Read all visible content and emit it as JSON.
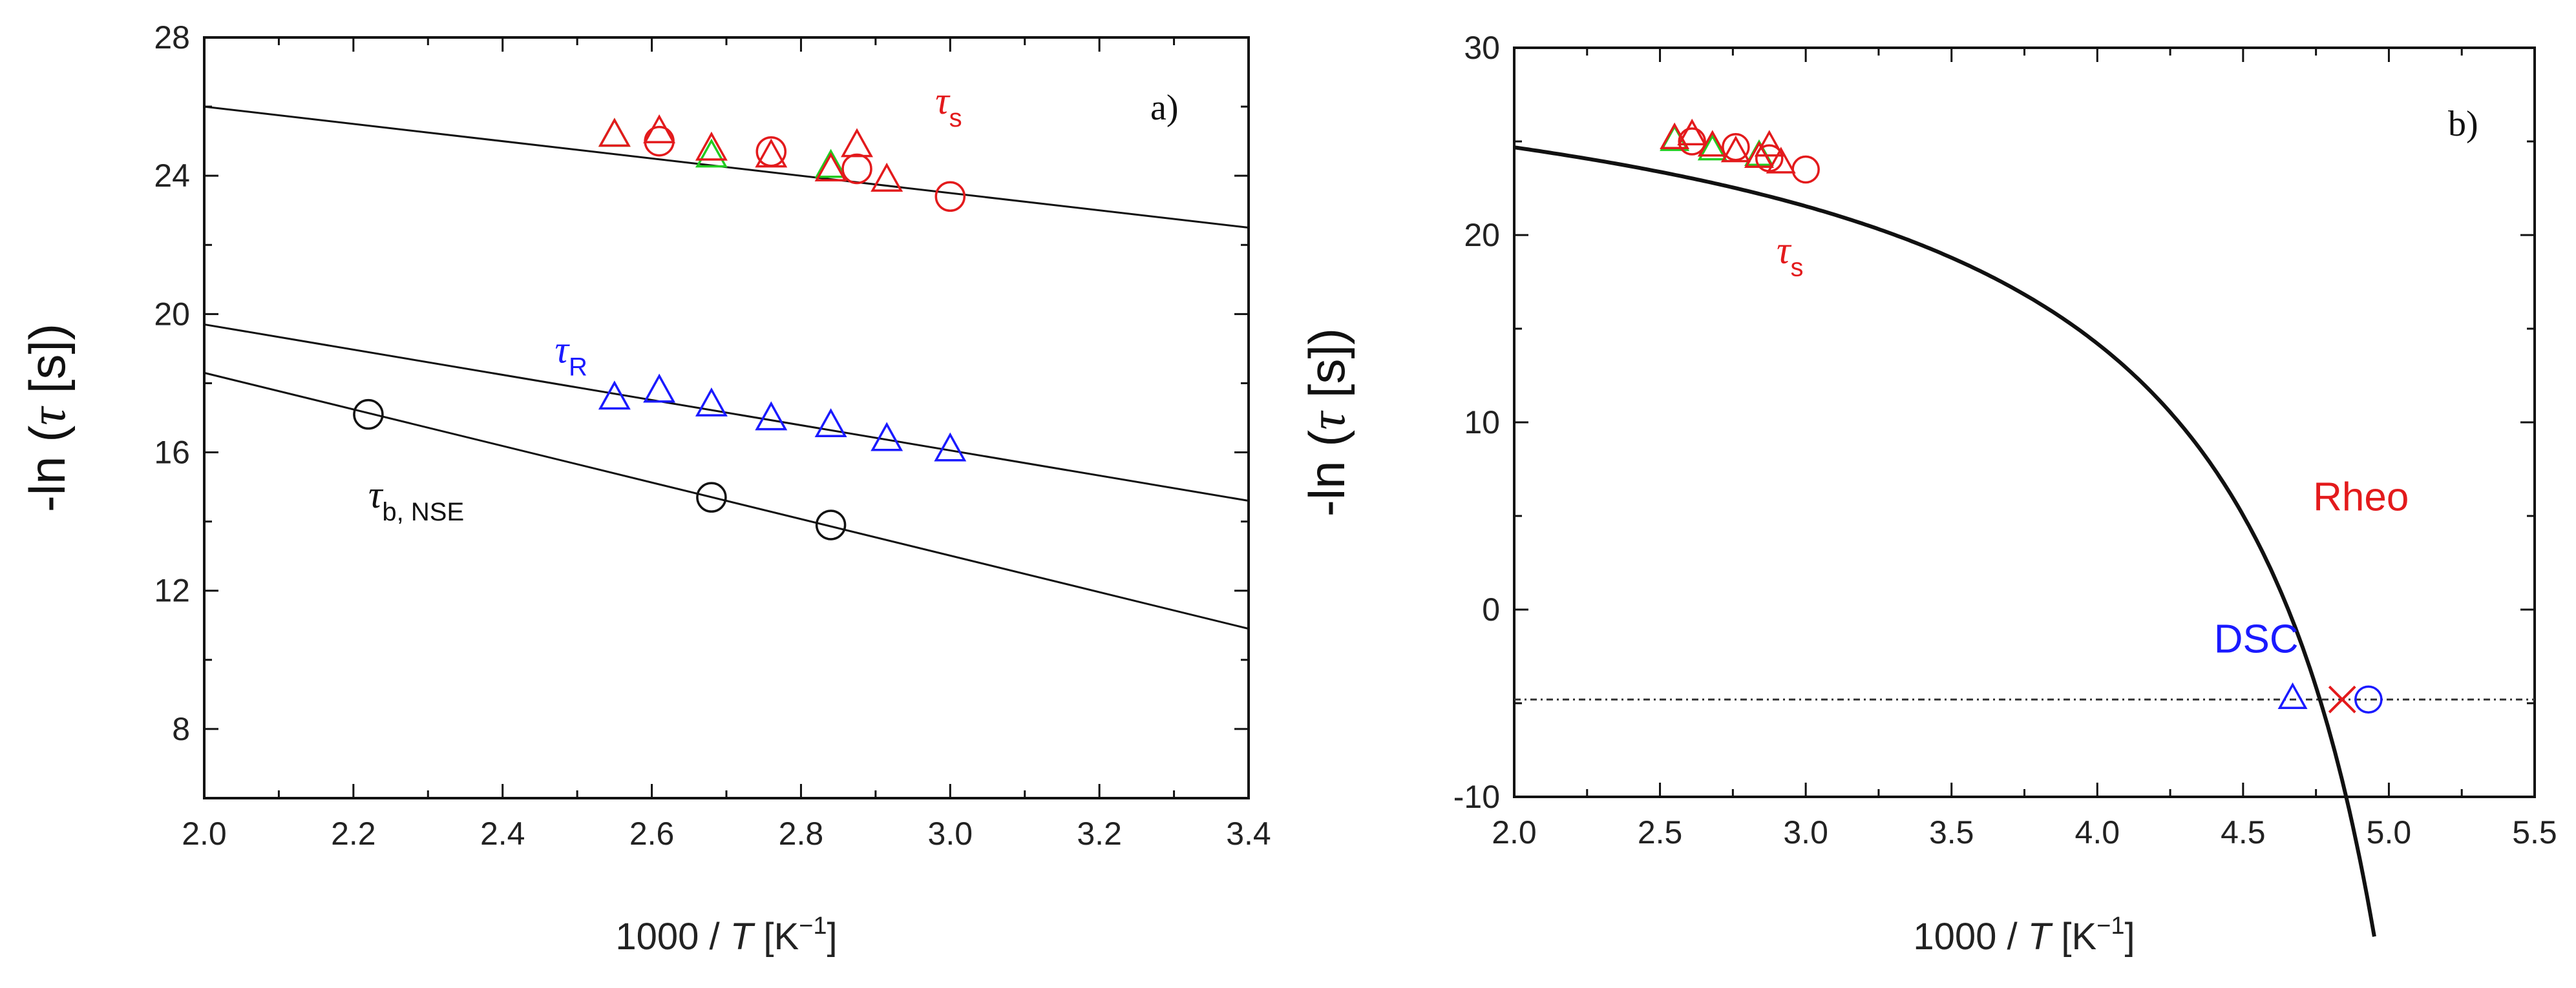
{
  "chart_data": [
    {
      "type": "scatter",
      "panel_label": "a)",
      "xlabel": {
        "prefix": "1000 / ",
        "var": "T",
        "unit_open": " [K",
        "unit_exp": "−1",
        "unit_close": "]"
      },
      "ylabel": {
        "text": "-ln (",
        "var": "τ",
        "unit": " [s])"
      },
      "xlim": [
        2.0,
        3.4
      ],
      "ylim": [
        6,
        28
      ],
      "xticks": [
        "2.0",
        "2.2",
        "2.4",
        "2.6",
        "2.8",
        "3.0",
        "3.2",
        "3.4"
      ],
      "yticks": [
        "8",
        "12",
        "16",
        "20",
        "24",
        "28"
      ],
      "grid": false,
      "fit_lines": [
        {
          "name": "τs fit",
          "x": [
            2.0,
            3.4
          ],
          "y": [
            26.0,
            22.5
          ]
        },
        {
          "name": "τR fit",
          "x": [
            2.0,
            3.4
          ],
          "y": [
            19.7,
            14.6
          ]
        },
        {
          "name": "τb,NSE fit",
          "x": [
            2.0,
            3.4
          ],
          "y": [
            18.3,
            10.9
          ]
        }
      ],
      "series": [
        {
          "name": "τs green triangles",
          "marker": "triangle",
          "color": "#22cc22",
          "points": [
            [
              2.55,
              25.2
            ],
            [
              2.68,
              24.6
            ],
            [
              2.84,
              24.3
            ]
          ]
        },
        {
          "name": "τs red triangles",
          "marker": "triangle",
          "color": "#e31a1c",
          "points": [
            [
              2.55,
              25.2
            ],
            [
              2.61,
              25.3
            ],
            [
              2.68,
              24.8
            ],
            [
              2.76,
              24.6
            ],
            [
              2.84,
              24.2
            ],
            [
              2.875,
              24.9
            ],
            [
              2.915,
              23.9
            ]
          ]
        },
        {
          "name": "τs red circles",
          "marker": "circle",
          "color": "#e31a1c",
          "points": [
            [
              2.61,
              25.0
            ],
            [
              2.76,
              24.7
            ],
            [
              2.875,
              24.2
            ],
            [
              3.0,
              23.4
            ]
          ]
        },
        {
          "name": "τR blue triangles",
          "marker": "triangle",
          "color": "#1a1aff",
          "points": [
            [
              2.55,
              17.6
            ],
            [
              2.61,
              17.8
            ],
            [
              2.68,
              17.4
            ],
            [
              2.76,
              17.0
            ],
            [
              2.84,
              16.8
            ],
            [
              2.915,
              16.4
            ],
            [
              3.0,
              16.1
            ]
          ]
        },
        {
          "name": "τb,NSE black circles",
          "marker": "circle",
          "color": "#111111",
          "points": [
            [
              2.22,
              17.1
            ],
            [
              2.68,
              14.7
            ],
            [
              2.84,
              13.9
            ]
          ]
        }
      ],
      "annotations": [
        {
          "id": "tau-s",
          "symbol": "τ",
          "sub": "s",
          "color": "#e31a1c",
          "x": 2.98,
          "y": 25.8
        },
        {
          "id": "tau-r",
          "symbol": "τ",
          "sub": "R",
          "color": "#1a1aff",
          "x": 2.47,
          "y": 18.6
        },
        {
          "id": "tau-b",
          "symbol": "τ",
          "sub": "b, NSE",
          "color": "#111111",
          "x": 2.22,
          "y": 14.4
        }
      ]
    },
    {
      "type": "scatter",
      "panel_label": "b)",
      "xlabel": {
        "prefix": "1000 / ",
        "var": "T",
        "unit_open": " [K",
        "unit_exp": "−1",
        "unit_close": "]"
      },
      "ylabel": {
        "text": "-ln (",
        "var": "τ",
        "unit": " [s])"
      },
      "xlim": [
        2.0,
        5.5
      ],
      "ylim": [
        -10,
        30
      ],
      "xticks": [
        "2.0",
        "2.5",
        "3.0",
        "3.5",
        "4.0",
        "4.5",
        "5.0",
        "5.5"
      ],
      "yticks": [
        "-10",
        "0",
        "10",
        "20",
        "30"
      ],
      "grid": false,
      "vft_curve": {
        "name": "VFT fit",
        "A": 27.54,
        "B": 5.0,
        "x0": 5.5,
        "x": [
          2.0,
          4.95
        ]
      },
      "reference_line": {
        "name": "dotted horizontal",
        "y": -4.8
      },
      "series": [
        {
          "name": "τs green triangles",
          "marker": "triangle",
          "color": "#22cc22",
          "points": [
            [
              2.55,
              25.1
            ],
            [
              2.68,
              24.6
            ],
            [
              2.84,
              24.3
            ]
          ]
        },
        {
          "name": "τs red triangles",
          "marker": "triangle",
          "color": "#e31a1c",
          "points": [
            [
              2.55,
              25.2
            ],
            [
              2.61,
              25.4
            ],
            [
              2.68,
              24.8
            ],
            [
              2.76,
              24.5
            ],
            [
              2.84,
              24.2
            ],
            [
              2.875,
              24.8
            ],
            [
              2.915,
              23.9
            ]
          ]
        },
        {
          "name": "τs red circles",
          "marker": "circle",
          "color": "#e31a1c",
          "points": [
            [
              2.61,
              25.0
            ],
            [
              2.76,
              24.7
            ],
            [
              2.875,
              24.1
            ],
            [
              3.0,
              23.5
            ]
          ]
        },
        {
          "name": "DSC",
          "marker": "triangle",
          "color": "#1a1aff",
          "points": [
            [
              4.67,
              -4.7
            ]
          ]
        },
        {
          "name": "Rheo",
          "marker": "cross",
          "color": "#e31a1c",
          "points": [
            [
              4.84,
              -4.8
            ]
          ]
        },
        {
          "name": "DSC circle",
          "marker": "circle",
          "color": "#1a1aff",
          "points": [
            [
              4.93,
              -4.8
            ]
          ]
        }
      ],
      "annotations": [
        {
          "id": "tau-s-b",
          "symbol": "τ",
          "sub": "s",
          "color": "#e31a1c",
          "x": 2.9,
          "y": 18.5
        },
        {
          "id": "rheo",
          "text": "Rheo",
          "color": "#e31a1c",
          "x": 4.74,
          "y": 5.3
        },
        {
          "id": "dsc",
          "text": "DSC",
          "color": "#1a1aff",
          "x": 4.4,
          "y": -2.3
        }
      ]
    }
  ]
}
